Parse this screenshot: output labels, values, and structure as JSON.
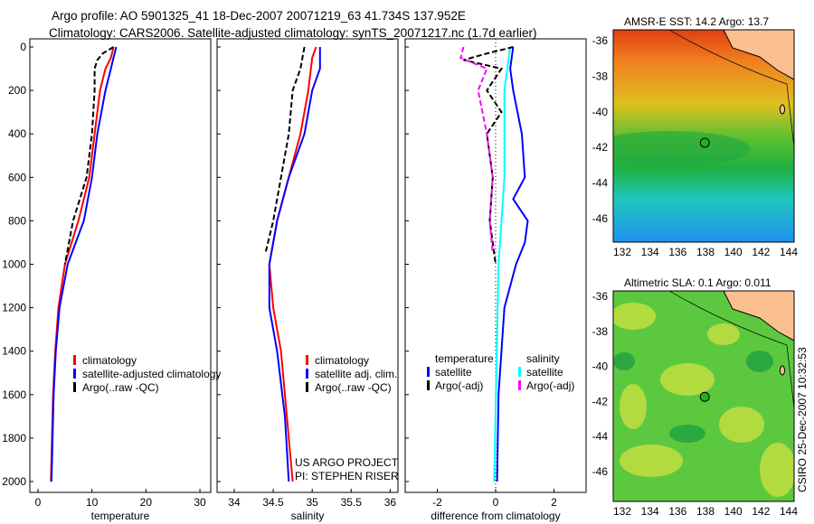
{
  "titles": {
    "line1": "Argo profile: AO 5901325_41 18-Dec-2007 20071219_63 41.734S 137.952E",
    "line2": "Climatology: CARS2006. Satellite-adjusted climatology: synTS_20071217.nc (1.7d earlier)"
  },
  "side_label": "CSIRO 25-Dec-2007 10:32:53",
  "colors": {
    "climatology": "#ff0000",
    "satellite": "#0000ff",
    "argo": "#000000",
    "cyan": "#00ffff",
    "magenta": "#ff00ff",
    "land": "#f9c08e"
  },
  "chart_data": [
    {
      "type": "line",
      "xlabel": "temperature",
      "xlim": [
        -1.5,
        32
      ],
      "ylim": [
        0,
        2000
      ],
      "yticks": [
        0,
        200,
        400,
        600,
        800,
        1000,
        1200,
        1400,
        1600,
        1800,
        2000
      ],
      "xticks": [
        0,
        10,
        20,
        30
      ],
      "legend": [
        "climatology",
        "satellite-adjusted climatology",
        "Argo(..raw -QC)"
      ],
      "series": [
        {
          "name": "climatology",
          "color": "#ff0000",
          "dash": false,
          "depth": [
            0,
            50,
            100,
            200,
            400,
            600,
            800,
            1000,
            1200,
            1400,
            1600,
            2000
          ],
          "values": [
            14,
            13.5,
            12.5,
            11.5,
            10.5,
            9.5,
            7.5,
            5,
            3.8,
            3.2,
            2.8,
            2.4
          ]
        },
        {
          "name": "satellite-adjusted climatology",
          "color": "#0000ff",
          "dash": false,
          "depth": [
            0,
            50,
            100,
            200,
            400,
            600,
            800,
            1000,
            1200,
            1400,
            1600,
            2000
          ],
          "values": [
            14.5,
            14,
            13.5,
            12.5,
            11,
            10,
            8.5,
            5.5,
            4,
            3.3,
            2.9,
            2.5
          ]
        },
        {
          "name": "Argo(..raw -QC)",
          "color": "#000000",
          "dash": true,
          "depth": [
            0,
            30,
            60,
            100,
            200,
            400,
            600,
            800,
            1000
          ],
          "values": [
            14,
            12,
            11,
            10.5,
            10.5,
            10,
            9,
            6.5,
            5
          ]
        }
      ]
    },
    {
      "type": "line",
      "xlabel": "salinity",
      "xlim": [
        33.78,
        36.1
      ],
      "ylim": [
        0,
        2000
      ],
      "xticks": [
        34,
        34.5,
        35,
        35.5,
        36
      ],
      "legend": [
        "climatology",
        "satellite adj. clim.",
        "Argo(..raw -QC)"
      ],
      "annotations": [
        "US ARGO PROJECT",
        "PI: STEPHEN RISER"
      ],
      "series": [
        {
          "name": "climatology",
          "color": "#ff0000",
          "dash": false,
          "depth": [
            0,
            50,
            200,
            400,
            600,
            800,
            1000,
            1200,
            1400,
            1600,
            2000
          ],
          "values": [
            35.05,
            35.0,
            34.95,
            34.85,
            34.7,
            34.55,
            34.45,
            34.5,
            34.6,
            34.65,
            34.75
          ]
        },
        {
          "name": "satellite adj. clim.",
          "color": "#0000ff",
          "dash": false,
          "depth": [
            0,
            100,
            200,
            400,
            600,
            800,
            1000,
            1200,
            1400,
            1700,
            2000
          ],
          "values": [
            35.1,
            35.1,
            35.0,
            34.9,
            34.7,
            34.55,
            34.45,
            34.45,
            34.55,
            34.65,
            34.7
          ]
        },
        {
          "name": "Argo(..raw -QC)",
          "color": "#000000",
          "dash": true,
          "depth": [
            0,
            100,
            200,
            400,
            600,
            800,
            950
          ],
          "values": [
            34.9,
            34.85,
            34.75,
            34.7,
            34.6,
            34.5,
            34.4
          ]
        }
      ]
    },
    {
      "type": "line",
      "xlabel": "difference from climatology",
      "xlim": [
        -3.1,
        3.1
      ],
      "ylim": [
        0,
        2000
      ],
      "xticks": [
        -2,
        0,
        2
      ],
      "legend_headers": [
        "temperature",
        "salinity"
      ],
      "legend": [
        "satellite",
        "Argo(-adj)",
        "satellite",
        "Argo(-adj)"
      ],
      "series": [
        {
          "name": "temperature satellite",
          "color": "#00ffff",
          "dash": false,
          "depth": [
            0,
            100,
            200,
            400,
            600,
            800,
            1000,
            2000
          ],
          "values": [
            0.5,
            0.4,
            0.3,
            0.3,
            0.3,
            0.2,
            0.1,
            -0.05
          ]
        },
        {
          "name": "salinity satellite",
          "color": "#0000ff",
          "dash": false,
          "depth": [
            0,
            100,
            200,
            400,
            600,
            700,
            800,
            900,
            1000,
            1200,
            1600,
            2000
          ],
          "values": [
            0.6,
            0.5,
            0.6,
            0.9,
            1.0,
            0.6,
            1.1,
            1.0,
            0.7,
            0.3,
            0.1,
            0.05
          ]
        },
        {
          "name": "temperature Argo(-adj)",
          "color": "#000000",
          "dash": true,
          "depth": [
            0,
            30,
            60,
            100,
            200,
            300,
            400,
            600,
            800,
            1000
          ],
          "values": [
            0.6,
            -0.3,
            -1.1,
            0.2,
            -0.3,
            0.2,
            -0.3,
            -0.1,
            -0.2,
            0
          ]
        },
        {
          "name": "salinity Argo(-adj)",
          "color": "#ff00ff",
          "dash": true,
          "depth": [
            0,
            50,
            100,
            200,
            400,
            600,
            800,
            950
          ],
          "values": [
            -1.1,
            -1.2,
            -0.3,
            -0.6,
            -0.3,
            -0.1,
            -0.2,
            -0.1
          ]
        }
      ]
    },
    {
      "type": "heatmap",
      "title": "AMSR-E SST: 14.2 Argo: 13.7",
      "xticks": [
        132,
        134,
        136,
        138,
        140,
        142,
        144
      ],
      "yticks": [
        -36,
        -38,
        -40,
        -42,
        -44,
        -46
      ],
      "marker": {
        "lon": 137.952,
        "lat": -41.734
      }
    },
    {
      "type": "heatmap",
      "title": "Altimetric SLA: 0.1 Argo: 0.011",
      "xticks": [
        132,
        134,
        136,
        138,
        140,
        142,
        144
      ],
      "yticks": [
        -36,
        -38,
        -40,
        -42,
        -44,
        -46
      ],
      "marker": {
        "lon": 137.952,
        "lat": -41.734
      }
    }
  ]
}
